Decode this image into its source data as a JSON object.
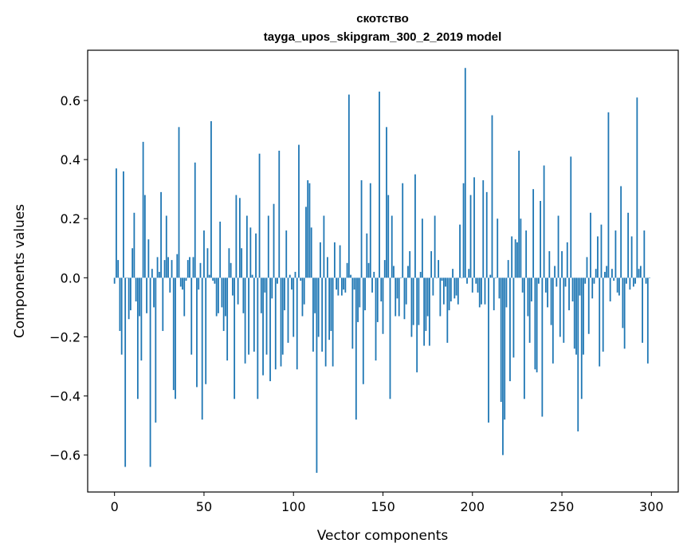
{
  "chart_data": {
    "type": "bar",
    "title": "скотство",
    "subtitle": "tayga_upos_skipgram_300_2_2019 model",
    "xlabel": "Vector components",
    "ylabel": "Components values",
    "xlim": [
      -15,
      315
    ],
    "ylim": [
      -0.725,
      0.77
    ],
    "xticks": [
      0,
      50,
      100,
      150,
      200,
      250,
      300
    ],
    "xtick_labels": [
      "0",
      "50",
      "100",
      "150",
      "200",
      "250",
      "300"
    ],
    "yticks": [
      -0.6,
      -0.4,
      -0.2,
      0.0,
      0.2,
      0.4,
      0.6
    ],
    "ytick_labels": [
      "−0.6",
      "−0.4",
      "−0.2",
      "0.0",
      "0.2",
      "0.4",
      "0.6"
    ],
    "grid": false,
    "bar_color": "#1f77b4",
    "x": [
      0,
      1,
      2,
      3,
      4,
      5,
      6,
      7,
      8,
      9,
      10,
      11,
      12,
      13,
      14,
      15,
      16,
      17,
      18,
      19,
      20,
      21,
      22,
      23,
      24,
      25,
      26,
      27,
      28,
      29,
      30,
      31,
      32,
      33,
      34,
      35,
      36,
      37,
      38,
      39,
      40,
      41,
      42,
      43,
      44,
      45,
      46,
      47,
      48,
      49,
      50,
      51,
      52,
      53,
      54,
      55,
      56,
      57,
      58,
      59,
      60,
      61,
      62,
      63,
      64,
      65,
      66,
      67,
      68,
      69,
      70,
      71,
      72,
      73,
      74,
      75,
      76,
      77,
      78,
      79,
      80,
      81,
      82,
      83,
      84,
      85,
      86,
      87,
      88,
      89,
      90,
      91,
      92,
      93,
      94,
      95,
      96,
      97,
      98,
      99,
      100,
      101,
      102,
      103,
      104,
      105,
      106,
      107,
      108,
      109,
      110,
      111,
      112,
      113,
      114,
      115,
      116,
      117,
      118,
      119,
      120,
      121,
      122,
      123,
      124,
      125,
      126,
      127,
      128,
      129,
      130,
      131,
      132,
      133,
      134,
      135,
      136,
      137,
      138,
      139,
      140,
      141,
      142,
      143,
      144,
      145,
      146,
      147,
      148,
      149,
      150,
      151,
      152,
      153,
      154,
      155,
      156,
      157,
      158,
      159,
      160,
      161,
      162,
      163,
      164,
      165,
      166,
      167,
      168,
      169,
      170,
      171,
      172,
      173,
      174,
      175,
      176,
      177,
      178,
      179,
      180,
      181,
      182,
      183,
      184,
      185,
      186,
      187,
      188,
      189,
      190,
      191,
      192,
      193,
      194,
      195,
      196,
      197,
      198,
      199,
      200,
      201,
      202,
      203,
      204,
      205,
      206,
      207,
      208,
      209,
      210,
      211,
      212,
      213,
      214,
      215,
      216,
      217,
      218,
      219,
      220,
      221,
      222,
      223,
      224,
      225,
      226,
      227,
      228,
      229,
      230,
      231,
      232,
      233,
      234,
      235,
      236,
      237,
      238,
      239,
      240,
      241,
      242,
      243,
      244,
      245,
      246,
      247,
      248,
      249,
      250,
      251,
      252,
      253,
      254,
      255,
      256,
      257,
      258,
      259,
      260,
      261,
      262,
      263,
      264,
      265,
      266,
      267,
      268,
      269,
      270,
      271,
      272,
      273,
      274,
      275,
      276,
      277,
      278,
      279,
      280,
      281,
      282,
      283,
      284,
      285,
      286,
      287,
      288,
      289,
      290,
      291,
      292,
      293,
      294,
      295,
      296,
      297,
      298,
      299
    ],
    "values": [
      -0.02,
      0.37,
      0.06,
      -0.18,
      -0.26,
      0.36,
      -0.64,
      0.0,
      -0.14,
      -0.11,
      0.1,
      0.22,
      -0.08,
      -0.41,
      -0.13,
      -0.28,
      0.46,
      0.28,
      -0.12,
      0.13,
      -0.64,
      0.03,
      -0.1,
      -0.49,
      0.07,
      0.02,
      0.29,
      -0.18,
      0.06,
      0.21,
      0.07,
      -0.05,
      0.06,
      -0.38,
      -0.41,
      0.08,
      0.51,
      -0.03,
      -0.04,
      -0.13,
      -0.01,
      0.06,
      0.07,
      -0.26,
      0.07,
      0.39,
      -0.37,
      -0.04,
      0.05,
      -0.48,
      0.16,
      -0.36,
      0.1,
      0.01,
      0.53,
      -0.01,
      -0.02,
      -0.13,
      -0.12,
      0.19,
      -0.1,
      -0.18,
      -0.13,
      -0.28,
      0.1,
      0.05,
      -0.06,
      -0.41,
      0.28,
      -0.09,
      0.27,
      0.1,
      -0.12,
      -0.29,
      0.21,
      -0.26,
      0.17,
      0.01,
      -0.25,
      0.15,
      -0.41,
      0.42,
      -0.12,
      -0.33,
      -0.05,
      -0.26,
      0.21,
      -0.35,
      -0.07,
      0.25,
      -0.31,
      -0.02,
      0.43,
      -0.3,
      -0.26,
      -0.11,
      0.16,
      -0.22,
      0.01,
      -0.04,
      -0.2,
      0.02,
      -0.31,
      0.45,
      -0.01,
      -0.13,
      -0.09,
      0.24,
      0.33,
      0.32,
      0.17,
      -0.25,
      -0.12,
      -0.66,
      -0.2,
      0.12,
      -0.25,
      0.21,
      -0.3,
      0.07,
      -0.21,
      -0.18,
      -0.3,
      0.12,
      -0.04,
      -0.06,
      0.11,
      -0.06,
      -0.04,
      -0.05,
      0.05,
      0.62,
      0.01,
      -0.24,
      -0.04,
      -0.48,
      -0.15,
      -0.1,
      0.33,
      -0.36,
      -0.11,
      0.15,
      0.05,
      0.32,
      -0.05,
      0.02,
      -0.28,
      -0.15,
      0.63,
      -0.08,
      -0.19,
      0.06,
      0.51,
      0.28,
      -0.41,
      0.21,
      0.04,
      -0.13,
      -0.07,
      -0.13,
      0.0,
      0.32,
      -0.14,
      -0.09,
      0.04,
      0.09,
      -0.2,
      -0.16,
      0.35,
      -0.32,
      -0.16,
      0.02,
      0.2,
      -0.23,
      -0.18,
      -0.13,
      -0.23,
      0.09,
      -0.06,
      0.21,
      0.0,
      0.06,
      -0.13,
      -0.01,
      -0.09,
      -0.03,
      -0.22,
      -0.11,
      -0.08,
      0.03,
      -0.07,
      -0.06,
      -0.09,
      0.18,
      0.0,
      0.32,
      0.71,
      -0.02,
      0.03,
      0.28,
      -0.05,
      0.34,
      -0.02,
      -0.05,
      -0.1,
      -0.09,
      0.33,
      -0.09,
      0.29,
      -0.49,
      0.01,
      0.55,
      -0.11,
      0.0,
      0.2,
      -0.07,
      -0.42,
      -0.6,
      -0.48,
      -0.1,
      0.06,
      -0.35,
      0.14,
      -0.27,
      0.13,
      0.12,
      0.43,
      0.2,
      -0.05,
      -0.41,
      0.16,
      -0.13,
      -0.22,
      -0.08,
      0.3,
      -0.31,
      -0.32,
      -0.02,
      0.26,
      -0.47,
      0.38,
      -0.05,
      -0.1,
      0.09,
      -0.16,
      -0.29,
      0.04,
      -0.03,
      0.21,
      -0.2,
      0.09,
      -0.22,
      -0.03,
      0.12,
      -0.11,
      0.41,
      -0.08,
      -0.24,
      -0.26,
      -0.52,
      -0.06,
      -0.41,
      -0.26,
      -0.02,
      0.07,
      -0.19,
      0.22,
      -0.07,
      -0.02,
      0.03,
      0.14,
      -0.3,
      0.18,
      -0.25,
      0.02,
      0.04,
      0.56,
      -0.08,
      0.03,
      -0.01,
      0.16,
      -0.05,
      -0.06,
      0.31,
      -0.17,
      -0.24,
      -0.02,
      0.22,
      -0.04,
      0.14,
      -0.03,
      -0.02,
      0.61,
      0.03,
      0.04,
      -0.22,
      0.16,
      -0.02,
      -0.29,
      0.0
    ]
  }
}
